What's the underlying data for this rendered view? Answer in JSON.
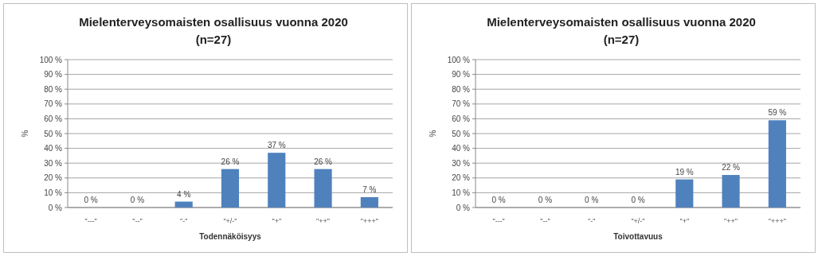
{
  "chart_data": [
    {
      "type": "bar",
      "title": "Mielenterveysomaisten osallisuus vuonna 2020",
      "subtitle": "(n=27)",
      "xlabel": "Todennäköisyys",
      "ylabel": "%",
      "categories": [
        "\"---\"",
        "\"--\"",
        "\"-\"",
        "\"+/-\"",
        "\"+\"",
        "\"++\"",
        "\"+++\""
      ],
      "values": [
        0,
        0,
        4,
        26,
        37,
        26,
        7
      ],
      "value_labels": [
        "0 %",
        "0 %",
        "4 %",
        "26 %",
        "37 %",
        "26 %",
        "7 %"
      ],
      "color": "#4f81bd",
      "ylim": [
        0,
        100
      ],
      "yticks": [
        {
          "value": 0,
          "label": "0 %"
        },
        {
          "value": 10,
          "label": "10 %"
        },
        {
          "value": 20,
          "label": "20 %"
        },
        {
          "value": 30,
          "label": "30 %"
        },
        {
          "value": 40,
          "label": "40 %"
        },
        {
          "value": 50,
          "label": "50 %"
        },
        {
          "value": 60,
          "label": "60 %"
        },
        {
          "value": 70,
          "label": "70 %"
        },
        {
          "value": 80,
          "label": "80 %"
        },
        {
          "value": 90,
          "label": "90 %"
        },
        {
          "value": 100,
          "label": "100 %"
        }
      ],
      "grid": "y"
    },
    {
      "type": "bar",
      "title": "Mielenterveysomaisten osallisuus vuonna 2020",
      "subtitle": "(n=27)",
      "xlabel": "Toivottavuus",
      "ylabel": "%",
      "categories": [
        "\"---\"",
        "\"--\"",
        "\"-\"",
        "\"+/-\"",
        "\"+\"",
        "\"++\"",
        "\"+++\""
      ],
      "values": [
        0,
        0,
        0,
        0,
        19,
        22,
        59
      ],
      "value_labels": [
        "0 %",
        "0 %",
        "0 %",
        "0 %",
        "19 %",
        "22 %",
        "59 %"
      ],
      "color": "#4f81bd",
      "ylim": [
        0,
        100
      ],
      "yticks": [
        {
          "value": 0,
          "label": "0 %"
        },
        {
          "value": 10,
          "label": "10 %"
        },
        {
          "value": 20,
          "label": "20 %"
        },
        {
          "value": 30,
          "label": "30 %"
        },
        {
          "value": 40,
          "label": "40 %"
        },
        {
          "value": 50,
          "label": "50 %"
        },
        {
          "value": 60,
          "label": "60 %"
        },
        {
          "value": 70,
          "label": "70 %"
        },
        {
          "value": 80,
          "label": "80 %"
        },
        {
          "value": 90,
          "label": "90 %"
        },
        {
          "value": 100,
          "label": "100 %"
        }
      ],
      "grid": "y"
    }
  ]
}
